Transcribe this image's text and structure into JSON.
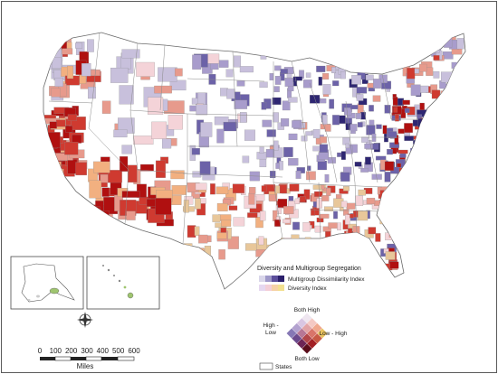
{
  "legend": {
    "title": "Diversity and Multigroup Segregation",
    "ramp1_label": "Multigroup Dissimilarity Index",
    "ramp2_label": "Diversity Index",
    "ramp1_colors": [
      "#d9d6ea",
      "#9e98c8",
      "#5c4f9c",
      "#2b1f6b"
    ],
    "ramp2_colors": [
      "#e6d8f0",
      "#f3cfd8",
      "#f6d2a6",
      "#f2e090"
    ],
    "bivariate": {
      "top": "Both High",
      "bottom": "Both Low",
      "left_line1": "High -",
      "left_line2": "Low",
      "right": "Low - High",
      "colors": [
        [
          "#efe6f0",
          "#f4c9c4",
          "#f0a88e",
          "#e8c25e"
        ],
        [
          "#d9c6e3",
          "#e2a3a6",
          "#d9756a",
          "#c85a45"
        ],
        [
          "#b3a2cf",
          "#b77796",
          "#b2474a",
          "#a21f24"
        ],
        [
          "#8678b5",
          "#6b4a8c",
          "#6d2555",
          "#5a0d1a"
        ]
      ]
    },
    "states_label": "States"
  },
  "scalebar": {
    "ticks": [
      "0",
      "100",
      "200",
      "300",
      "400",
      "500",
      "600"
    ],
    "unit": "Miles"
  },
  "palette": {
    "dark_red": "#b01010",
    "red": "#cf3a30",
    "light_red": "#e79a8c",
    "pink": "#f4d3d8",
    "peach": "#f2b080",
    "tan": "#e8c79a",
    "lavender": "#c8c0dc",
    "light_purple": "#a89ccc",
    "purple": "#6c62a8",
    "dark_purple": "#2e2672",
    "white": "#ffffff"
  }
}
